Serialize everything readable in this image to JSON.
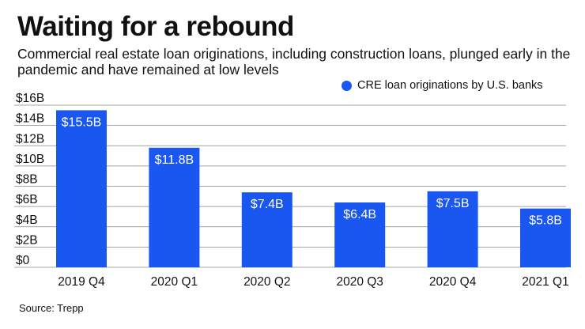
{
  "header": {
    "title": "Waiting for a rebound",
    "subtitle": "Commercial real estate loan originations, including construction loans, plunged early in the pandemic and have remained at low levels"
  },
  "footer": {
    "source": "Source: Trepp"
  },
  "colors": {
    "bar": "#1a56f0",
    "grid": "#888888",
    "label": "#ffffff"
  },
  "chart_data": {
    "type": "bar",
    "categories": [
      "2019 Q4",
      "2020 Q1",
      "2020 Q2",
      "2020 Q3",
      "2020 Q4",
      "2021 Q1"
    ],
    "series": [
      {
        "name": "CRE loan originations by U.S. banks",
        "values": [
          15.5,
          11.8,
          7.4,
          6.4,
          7.5,
          5.8
        ],
        "data_labels": [
          "$15.5B",
          "$11.8B",
          "$7.4B",
          "$6.4B",
          "$7.5B",
          "$5.8B"
        ]
      }
    ],
    "y_ticks": [
      0,
      2,
      4,
      6,
      8,
      10,
      12,
      14,
      16
    ],
    "y_tick_labels": [
      "$0",
      "$2B",
      "$4B",
      "$6B",
      "$8B",
      "$10B",
      "$12B",
      "$14B",
      "$16B"
    ],
    "ylim": [
      0,
      16
    ],
    "grid": true,
    "legend_position": "top-right"
  }
}
